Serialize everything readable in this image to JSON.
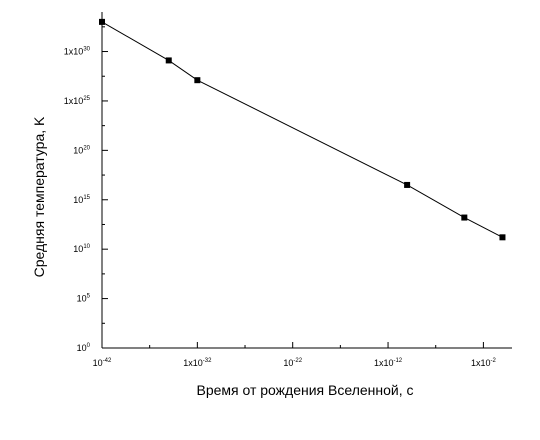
{
  "chart_data": {
    "type": "line",
    "title": "",
    "xlabel": "Время от рождения Вселенной, с",
    "ylabel": "Средняя температура, K",
    "xscale": "log",
    "yscale": "log",
    "xlim_exponent": [
      -42,
      1
    ],
    "ylim_exponent": [
      0,
      34
    ],
    "grid": false,
    "legend": "none",
    "x_ticks": [
      {
        "base": "10",
        "exp": "-42"
      },
      {
        "base": "1x10",
        "exp": "-32"
      },
      {
        "base": "10",
        "exp": "-22"
      },
      {
        "base": "1x10",
        "exp": "-12"
      },
      {
        "base": "1x10",
        "exp": "-2"
      }
    ],
    "y_ticks": [
      {
        "base": "10",
        "exp": "0"
      },
      {
        "base": "10",
        "exp": "5"
      },
      {
        "base": "10",
        "exp": "10"
      },
      {
        "base": "10",
        "exp": "15"
      },
      {
        "base": "10",
        "exp": "20"
      },
      {
        "base": "1x10",
        "exp": "25"
      },
      {
        "base": "1x10",
        "exp": "30"
      }
    ],
    "series": [
      {
        "x_exponent": [
          -42,
          -35,
          -32,
          -10,
          -4,
          0
        ],
        "y_exponent": [
          33,
          29.1,
          27.1,
          16.5,
          13.2,
          11.2
        ],
        "marker": "square",
        "color": "#000000"
      }
    ]
  }
}
